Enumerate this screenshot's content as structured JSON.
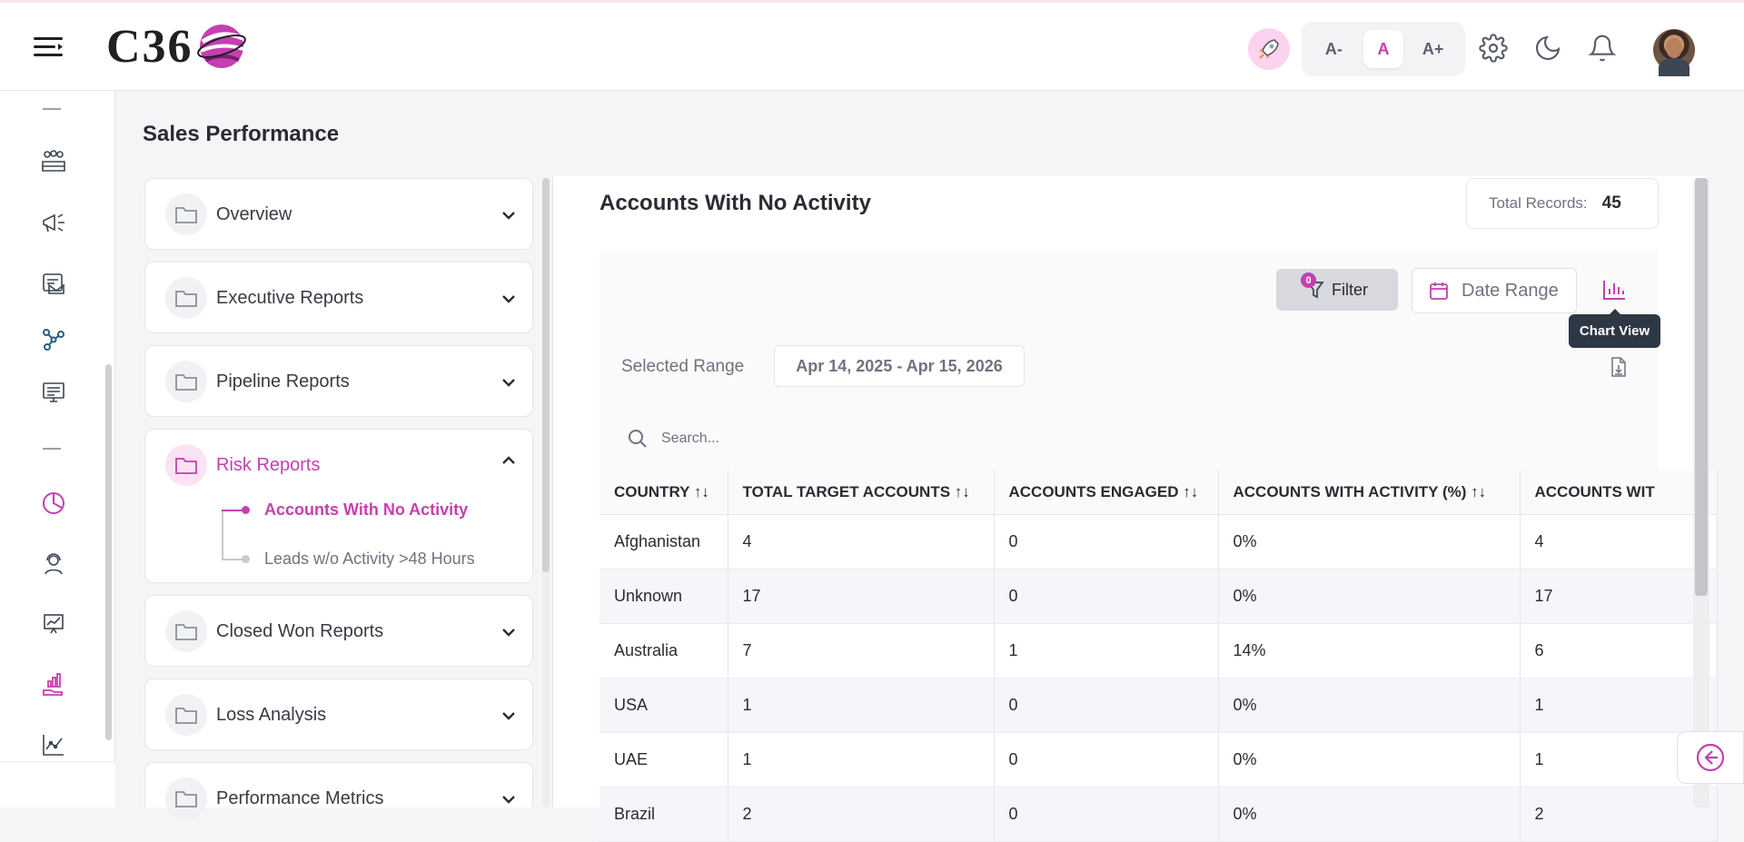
{
  "header": {
    "logo_text": "C36",
    "font_controls": [
      {
        "label": "A-",
        "active": false
      },
      {
        "label": "A",
        "active": true
      },
      {
        "label": "A+",
        "active": false
      }
    ],
    "icons": [
      "rocket-icon",
      "settings-icon",
      "moon-icon",
      "bell-icon"
    ],
    "accent_color": "#c43fb0"
  },
  "page": {
    "title": "Sales Performance"
  },
  "menu": {
    "items": [
      {
        "label": "Overview",
        "expanded": false
      },
      {
        "label": "Executive Reports",
        "expanded": false
      },
      {
        "label": "Pipeline Reports",
        "expanded": false
      },
      {
        "label": "Risk Reports",
        "expanded": true
      },
      {
        "label": "Closed Won Reports",
        "expanded": false
      },
      {
        "label": "Loss Analysis",
        "expanded": false
      },
      {
        "label": "Performance Metrics",
        "expanded": false
      }
    ],
    "risk_subitems": [
      {
        "label": "Accounts With No Activity",
        "active": true
      },
      {
        "label": "Leads w/o Activity >48 Hours",
        "active": false
      }
    ]
  },
  "report": {
    "title": "Accounts With No Activity",
    "total_label": "Total Records:",
    "total_value": "45",
    "filter_label": "Filter",
    "filter_count": "0",
    "date_range_label": "Date Range",
    "tooltip": "Chart View",
    "selected_range_label": "Selected Range",
    "selected_range_value": "Apr 14, 2025 - Apr 15, 2026",
    "search_placeholder": "Search..."
  },
  "table": {
    "columns": [
      "COUNTRY ↑↓",
      "TOTAL TARGET ACCOUNTS ↑↓",
      "ACCOUNTS ENGAGED ↑↓",
      "ACCOUNTS WITH ACTIVITY (%) ↑↓",
      "ACCOUNTS WIT"
    ],
    "rows": [
      [
        "Afghanistan",
        "4",
        "0",
        "0%",
        "4"
      ],
      [
        "Unknown",
        "17",
        "0",
        "0%",
        "17"
      ],
      [
        "Australia",
        "7",
        "1",
        "14%",
        "6"
      ],
      [
        "USA",
        "1",
        "0",
        "0%",
        "1"
      ],
      [
        "UAE",
        "1",
        "0",
        "0%",
        "1"
      ],
      [
        "Brazil",
        "2",
        "0",
        "0%",
        "2"
      ]
    ]
  }
}
